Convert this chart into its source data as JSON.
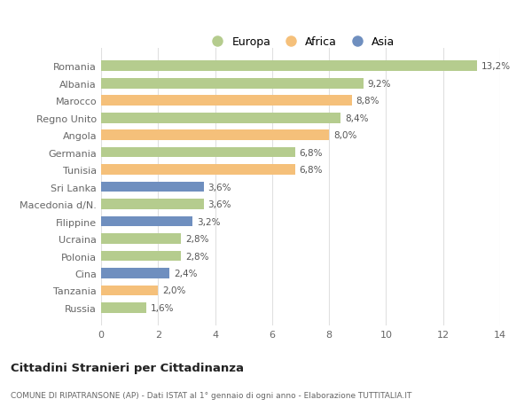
{
  "categories": [
    "Romania",
    "Albania",
    "Marocco",
    "Regno Unito",
    "Angola",
    "Germania",
    "Tunisia",
    "Sri Lanka",
    "Macedonia d/N.",
    "Filippine",
    "Ucraina",
    "Polonia",
    "Cina",
    "Tanzania",
    "Russia"
  ],
  "values": [
    13.2,
    9.2,
    8.8,
    8.4,
    8.0,
    6.8,
    6.8,
    3.6,
    3.6,
    3.2,
    2.8,
    2.8,
    2.4,
    2.0,
    1.6
  ],
  "continents": [
    "Europa",
    "Europa",
    "Africa",
    "Europa",
    "Africa",
    "Europa",
    "Africa",
    "Asia",
    "Europa",
    "Asia",
    "Europa",
    "Europa",
    "Asia",
    "Africa",
    "Europa"
  ],
  "colors": {
    "Europa": "#b5cc8e",
    "Africa": "#f5c07a",
    "Asia": "#6f8fbf"
  },
  "legend_labels": [
    "Europa",
    "Africa",
    "Asia"
  ],
  "legend_colors": [
    "#b5cc8e",
    "#f5c07a",
    "#6f8fbf"
  ],
  "title": "Cittadini Stranieri per Cittadinanza",
  "subtitle": "COMUNE DI RIPATRANSONE (AP) - Dati ISTAT al 1° gennaio di ogni anno - Elaborazione TUTTITALIA.IT",
  "xlim": [
    0,
    14
  ],
  "xticks": [
    0,
    2,
    4,
    6,
    8,
    10,
    12,
    14
  ],
  "bg_color": "#ffffff",
  "bar_height": 0.6,
  "grid_color": "#e0e0e0",
  "label_color": "#666666",
  "value_color": "#555555"
}
